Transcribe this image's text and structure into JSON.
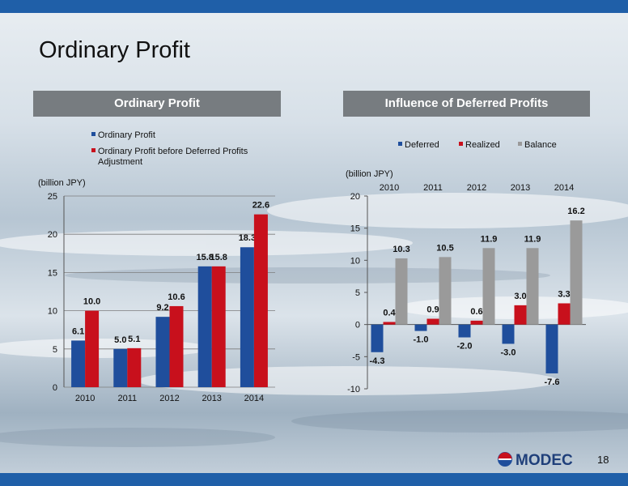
{
  "slide": {
    "title": "Ordinary Profit",
    "page_number": "18",
    "logo_text": "MODEC"
  },
  "colors": {
    "band": "#1f5fa8",
    "header_bg": "#777c80",
    "blue": "#1f4e9c",
    "red": "#c8101c",
    "gray": "#9a9a9a"
  },
  "chart_data": [
    {
      "type": "bar",
      "header": "Ordinary Profit",
      "title": "",
      "unit_label": "(billion JPY)",
      "categories": [
        "2010",
        "2011",
        "2012",
        "2013",
        "2014"
      ],
      "series": [
        {
          "name": "Ordinary Profit",
          "color": "#1f4e9c",
          "values": [
            6.1,
            5.0,
            9.2,
            15.8,
            18.3
          ]
        },
        {
          "name": "Ordinary Profit before Deferred Profits Adjustment",
          "color": "#c8101c",
          "values": [
            10.0,
            5.1,
            10.6,
            15.8,
            22.6
          ]
        }
      ],
      "ylim": [
        0,
        25
      ],
      "yticks": [
        0,
        5,
        10,
        15,
        20,
        25
      ],
      "value_labels": [
        [
          "6.1",
          "5.0",
          "9.2",
          "15.8",
          "18.3"
        ],
        [
          "10.0",
          "5.1",
          "10.6",
          "15.8",
          "22.6"
        ]
      ],
      "grid": true,
      "legend": "top"
    },
    {
      "type": "bar",
      "header": "Influence of Deferred Profits",
      "title": "",
      "unit_label": "(billion JPY)",
      "categories": [
        "2010",
        "2011",
        "2012",
        "2013",
        "2014"
      ],
      "series": [
        {
          "name": "Deferred",
          "color": "#1f4e9c",
          "values": [
            -4.3,
            -1.0,
            -2.0,
            -3.0,
            -7.6
          ]
        },
        {
          "name": "Realized",
          "color": "#c8101c",
          "values": [
            0.4,
            0.9,
            0.6,
            3.0,
            3.3
          ]
        },
        {
          "name": "Balance",
          "color": "#9a9a9a",
          "values": [
            10.3,
            10.5,
            11.9,
            11.9,
            16.2
          ]
        }
      ],
      "ylim": [
        -10,
        20
      ],
      "yticks": [
        -10,
        -5,
        0,
        5,
        10,
        15,
        20
      ],
      "value_labels": [
        [
          "-4.3",
          "-1.0",
          "-2.0",
          "-3.0",
          "-7.6"
        ],
        [
          "0.4",
          "0.9",
          "0.6",
          "3.0",
          "3.3"
        ],
        [
          "10.3",
          "10.5",
          "11.9",
          "11.9",
          "16.2"
        ]
      ],
      "grid": false,
      "legend": "top",
      "category_axis_position": "top"
    }
  ]
}
